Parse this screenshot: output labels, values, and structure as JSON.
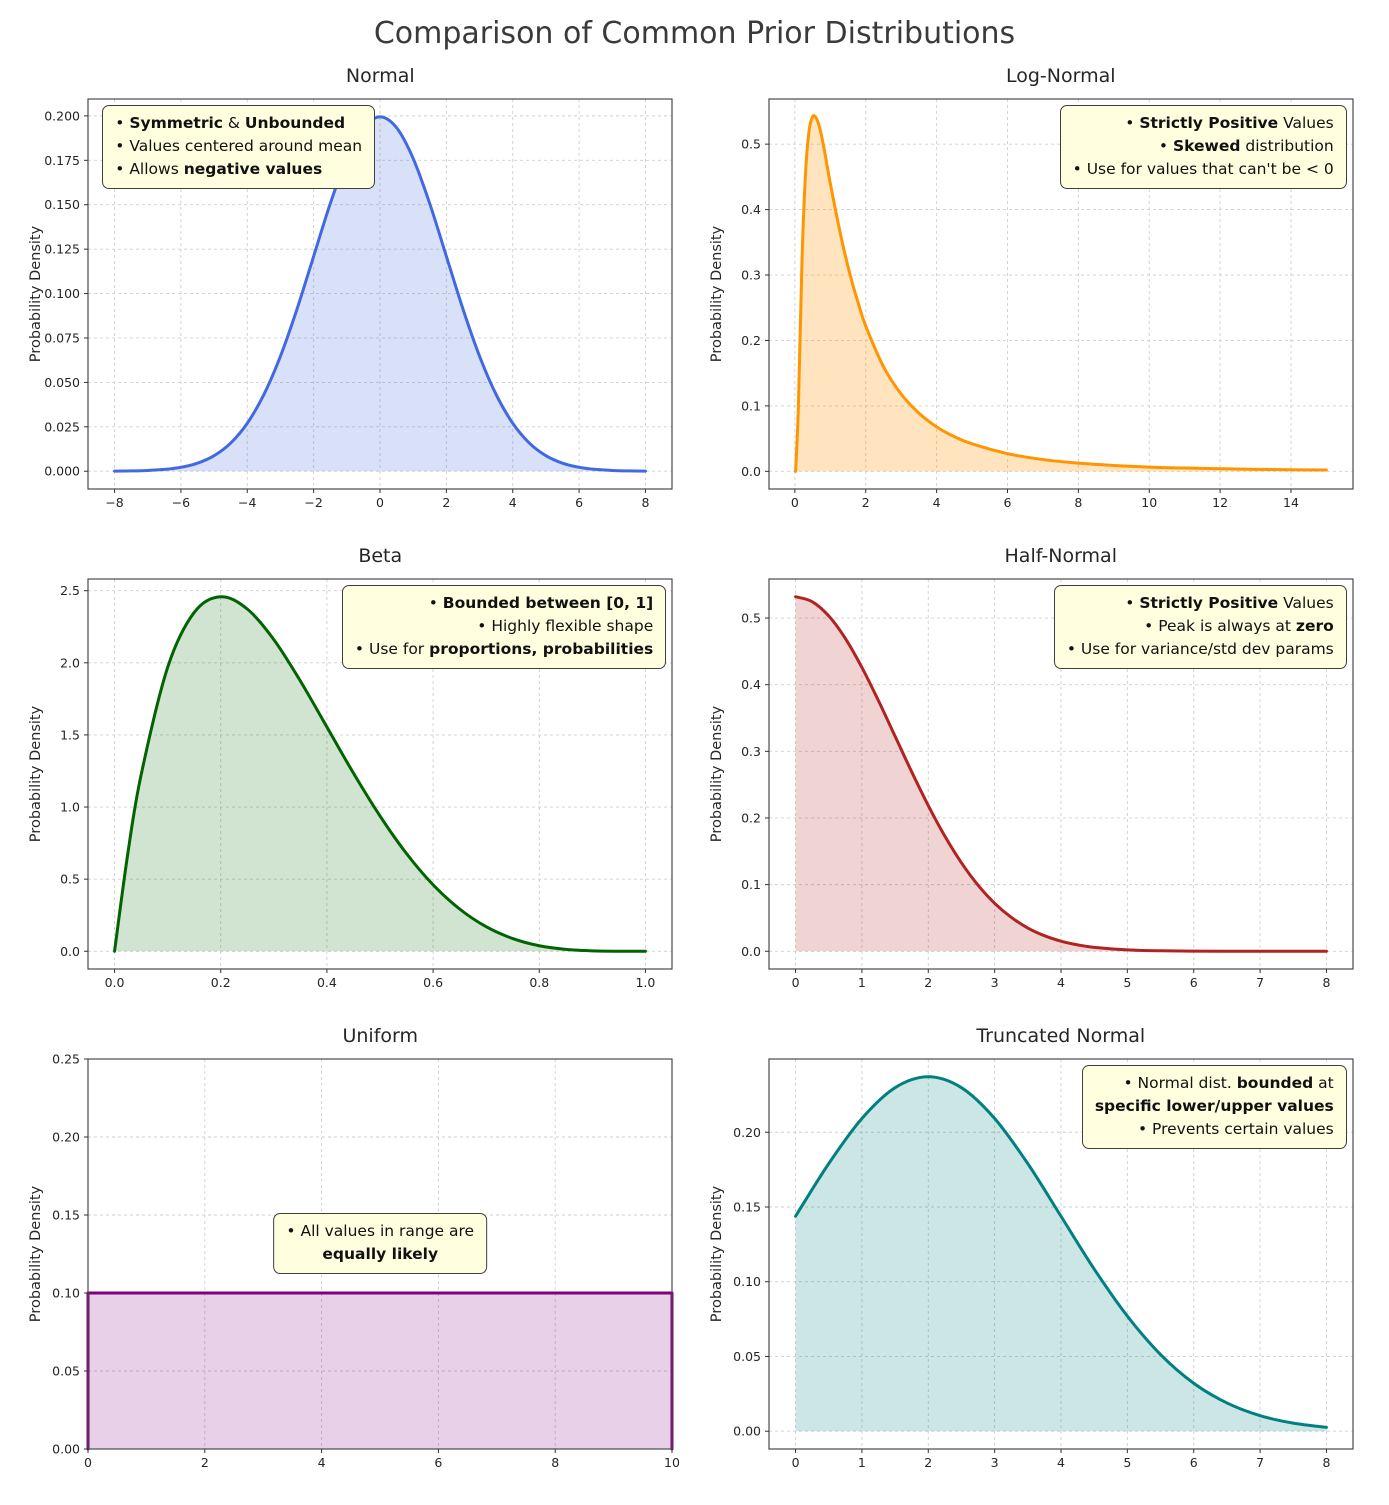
{
  "title": "Comparison of Common Prior Distributions",
  "chart_data": [
    {
      "type": "area",
      "title": "Normal",
      "ylabel": "Probability Density",
      "color": "#4169e1",
      "fill": "rgba(65,105,225,0.2)",
      "grid": true,
      "smooth": true,
      "xlim": [
        -8.8,
        8.8
      ],
      "ylim": [
        -0.01,
        0.2095
      ],
      "x_tick_vals": [
        -8,
        -6,
        -4,
        -2,
        0,
        2,
        4,
        6,
        8
      ],
      "x_tick_labels": [
        "−8",
        "−6",
        "−4",
        "−2",
        "0",
        "2",
        "4",
        "6",
        "8"
      ],
      "y_tick_vals": [
        0,
        0.025,
        0.05,
        0.075,
        0.1,
        0.125,
        0.15,
        0.175,
        0.2
      ],
      "y_tick_labels": [
        "0.000",
        "0.025",
        "0.050",
        "0.075",
        "0.100",
        "0.125",
        "0.150",
        "0.175",
        "0.200"
      ],
      "x": [
        -8,
        -7.5,
        -7,
        -6.5,
        -6,
        -5.5,
        -5,
        -4.5,
        -4,
        -3.5,
        -3,
        -2.5,
        -2,
        -1.5,
        -1,
        -0.5,
        0,
        0.5,
        1,
        1.5,
        2,
        2.5,
        3,
        3.5,
        4,
        4.5,
        5,
        5.5,
        6,
        6.5,
        7,
        7.5,
        8
      ],
      "y": [
        7e-05,
        0.00018,
        0.00044,
        0.00102,
        0.00221,
        0.00455,
        0.00876,
        0.01586,
        0.027,
        0.04313,
        0.06476,
        0.09132,
        0.12098,
        0.15057,
        0.17603,
        0.19333,
        0.19947,
        0.19333,
        0.17603,
        0.15057,
        0.12098,
        0.09132,
        0.06476,
        0.04313,
        0.027,
        0.01586,
        0.00876,
        0.00455,
        0.00221,
        0.00102,
        0.00044,
        0.00018,
        7e-05
      ],
      "annotation": {
        "corner": "top-left",
        "lines": [
          [
            {
              "t": "• "
            },
            {
              "t": "Symmetric",
              "b": true
            },
            {
              "t": " & "
            },
            {
              "t": "Unbounded",
              "b": true
            }
          ],
          [
            {
              "t": "• Values centered around mean"
            }
          ],
          [
            {
              "t": "• Allows "
            },
            {
              "t": "negative values",
              "b": true
            }
          ]
        ]
      }
    },
    {
      "type": "area",
      "title": "Log-Normal",
      "ylabel": "Probability Density",
      "color": "#ff9500",
      "fill": "rgba(255,149,0,0.25)",
      "grid": true,
      "smooth": true,
      "xlim": [
        -0.73,
        15.75
      ],
      "ylim": [
        -0.027,
        0.569
      ],
      "x_tick_vals": [
        0,
        2,
        4,
        6,
        8,
        10,
        12,
        14
      ],
      "x_tick_labels": [
        "0",
        "2",
        "4",
        "6",
        "8",
        "10",
        "12",
        "14"
      ],
      "y_tick_vals": [
        0,
        0.1,
        0.2,
        0.3,
        0.4,
        0.5
      ],
      "y_tick_labels": [
        "0.0",
        "0.1",
        "0.2",
        "0.3",
        "0.4",
        "0.5"
      ],
      "x": [
        0.02,
        0.1,
        0.2,
        0.3,
        0.4,
        0.5,
        0.6,
        0.7,
        0.8,
        0.9,
        1.0,
        1.2,
        1.4,
        1.6,
        1.8,
        2.0,
        2.5,
        3.0,
        3.5,
        4.0,
        4.5,
        5.0,
        6.0,
        7.0,
        8.0,
        9.0,
        10.0,
        11.0,
        12.0,
        13.0,
        14.0,
        15.0
      ],
      "y": [
        0.0,
        0.1,
        0.32,
        0.455,
        0.52,
        0.542,
        0.54,
        0.525,
        0.5,
        0.47,
        0.44,
        0.385,
        0.335,
        0.292,
        0.255,
        0.222,
        0.16,
        0.118,
        0.089,
        0.068,
        0.053,
        0.042,
        0.027,
        0.018,
        0.0125,
        0.009,
        0.0065,
        0.005,
        0.004,
        0.003,
        0.0025,
        0.002
      ],
      "annotation": {
        "corner": "top-right",
        "lines": [
          [
            {
              "t": "• "
            },
            {
              "t": "Strictly Positive",
              "b": true
            },
            {
              "t": " Values"
            }
          ],
          [
            {
              "t": "• "
            },
            {
              "t": "Skewed",
              "b": true
            },
            {
              "t": " distribution"
            }
          ],
          [
            {
              "t": "• Use for values that can't be < 0"
            }
          ]
        ]
      }
    },
    {
      "type": "area",
      "title": "Beta",
      "ylabel": "Probability Density",
      "color": "#006400",
      "fill": "rgba(0,100,0,0.18)",
      "grid": true,
      "smooth": true,
      "xlim": [
        -0.05,
        1.05
      ],
      "ylim": [
        -0.123,
        2.581
      ],
      "x_tick_vals": [
        0,
        0.2,
        0.4,
        0.6,
        0.8,
        1.0
      ],
      "x_tick_labels": [
        "0.0",
        "0.2",
        "0.4",
        "0.6",
        "0.8",
        "1.0"
      ],
      "y_tick_vals": [
        0,
        0.5,
        1.0,
        1.5,
        2.0,
        2.5
      ],
      "y_tick_labels": [
        "0.0",
        "0.5",
        "1.0",
        "1.5",
        "2.0",
        "2.5"
      ],
      "x": [
        0,
        0.025,
        0.05,
        0.1,
        0.15,
        0.2,
        0.25,
        0.3,
        0.35,
        0.4,
        0.45,
        0.5,
        0.55,
        0.6,
        0.65,
        0.7,
        0.75,
        0.8,
        0.85,
        0.9,
        0.95,
        1.0
      ],
      "y": [
        0,
        0.678,
        1.222,
        1.968,
        2.349,
        2.458,
        2.373,
        2.161,
        1.874,
        1.555,
        1.235,
        0.938,
        0.677,
        0.461,
        0.293,
        0.17,
        0.088,
        0.038,
        0.013,
        0.003,
        0.0002,
        0
      ],
      "annotation": {
        "corner": "top-right",
        "lines": [
          [
            {
              "t": "• "
            },
            {
              "t": "Bounded between [0, 1]",
              "b": true
            }
          ],
          [
            {
              "t": "• Highly flexible shape"
            }
          ],
          [
            {
              "t": "• Use for "
            },
            {
              "t": "proportions, probabilities",
              "b": true
            }
          ]
        ]
      }
    },
    {
      "type": "area",
      "title": "Half-Normal",
      "ylabel": "Probability Density",
      "color": "#b22222",
      "fill": "rgba(178,34,34,0.2)",
      "grid": true,
      "smooth": true,
      "xlim": [
        -0.4,
        8.4
      ],
      "ylim": [
        -0.0266,
        0.5586
      ],
      "x_tick_vals": [
        0,
        1,
        2,
        3,
        4,
        5,
        6,
        7,
        8
      ],
      "x_tick_labels": [
        "0",
        "1",
        "2",
        "3",
        "4",
        "5",
        "6",
        "7",
        "8"
      ],
      "y_tick_vals": [
        0,
        0.1,
        0.2,
        0.3,
        0.4,
        0.5
      ],
      "y_tick_labels": [
        "0.0",
        "0.1",
        "0.2",
        "0.3",
        "0.4",
        "0.5"
      ],
      "x": [
        0,
        0.25,
        0.5,
        0.75,
        1,
        1.25,
        1.5,
        1.75,
        2,
        2.25,
        2.5,
        2.75,
        3,
        3.25,
        3.5,
        3.75,
        4,
        4.25,
        4.5,
        5,
        5.5,
        6,
        6.5,
        7,
        7.5,
        8
      ],
      "y": [
        0.532,
        0.5246,
        0.5032,
        0.4695,
        0.4259,
        0.3759,
        0.3226,
        0.2693,
        0.2187,
        0.1727,
        0.1327,
        0.0991,
        0.072,
        0.0509,
        0.0349,
        0.0234,
        0.0152,
        0.0096,
        0.0059,
        0.0021,
        0.0007,
        0.0002,
        0.0001,
        5e-05,
        2e-05,
        1e-05
      ],
      "annotation": {
        "corner": "top-right",
        "lines": [
          [
            {
              "t": "• "
            },
            {
              "t": "Strictly Positive",
              "b": true
            },
            {
              "t": " Values"
            }
          ],
          [
            {
              "t": "• Peak is always at "
            },
            {
              "t": "zero",
              "b": true
            }
          ],
          [
            {
              "t": "• Use for variance/std dev params"
            }
          ]
        ]
      }
    },
    {
      "type": "area",
      "title": "Uniform",
      "ylabel": "Probability Density",
      "color": "#800080",
      "fill": "rgba(128,0,128,0.18)",
      "grid": true,
      "smooth": false,
      "xlim": [
        0,
        10
      ],
      "ylim": [
        0,
        0.25
      ],
      "x_tick_vals": [
        0,
        2,
        4,
        6,
        8,
        10
      ],
      "x_tick_labels": [
        "0",
        "2",
        "4",
        "6",
        "8",
        "10"
      ],
      "y_tick_vals": [
        0,
        0.05,
        0.1,
        0.15,
        0.2,
        0.25
      ],
      "y_tick_labels": [
        "0.00",
        "0.05",
        "0.10",
        "0.15",
        "0.20",
        "0.25"
      ],
      "x": [
        0,
        0,
        10,
        10
      ],
      "y": [
        0,
        0.1,
        0.1,
        0
      ],
      "annotation": {
        "corner": "center",
        "lines": [
          [
            {
              "t": "• All values in range are"
            }
          ],
          [
            {
              "t": "equally likely",
              "b": true
            }
          ]
        ]
      }
    },
    {
      "type": "area",
      "title": "Truncated Normal",
      "ylabel": "Probability Density",
      "color": "#008080",
      "fill": "rgba(0,128,128,0.2)",
      "grid": true,
      "smooth": true,
      "xlim": [
        -0.4,
        8.4
      ],
      "ylim": [
        -0.0119,
        0.249
      ],
      "x_tick_vals": [
        0,
        1,
        2,
        3,
        4,
        5,
        6,
        7,
        8
      ],
      "x_tick_labels": [
        "0",
        "1",
        "2",
        "3",
        "4",
        "5",
        "6",
        "7",
        "8"
      ],
      "y_tick_vals": [
        0,
        0.05,
        0.1,
        0.15,
        0.2
      ],
      "y_tick_labels": [
        "0.00",
        "0.05",
        "0.10",
        "0.15",
        "0.20"
      ],
      "x": [
        0,
        0.5,
        1,
        1.5,
        2,
        2.5,
        3,
        3.5,
        4,
        4.5,
        5,
        5.5,
        6,
        6.5,
        7,
        7.5,
        8
      ],
      "y": [
        0.1438,
        0.179,
        0.2092,
        0.2298,
        0.2371,
        0.2298,
        0.2092,
        0.179,
        0.1438,
        0.1085,
        0.077,
        0.0513,
        0.0321,
        0.0189,
        0.0104,
        0.0054,
        0.0026
      ],
      "annotation": {
        "corner": "top-right",
        "lines": [
          [
            {
              "t": "• Normal dist. "
            },
            {
              "t": "bounded",
              "b": true
            },
            {
              "t": " at"
            }
          ],
          [
            {
              "t": "specific lower/upper values",
              "b": true
            }
          ],
          [
            {
              "t": "• Prevents certain values"
            }
          ]
        ]
      }
    }
  ]
}
